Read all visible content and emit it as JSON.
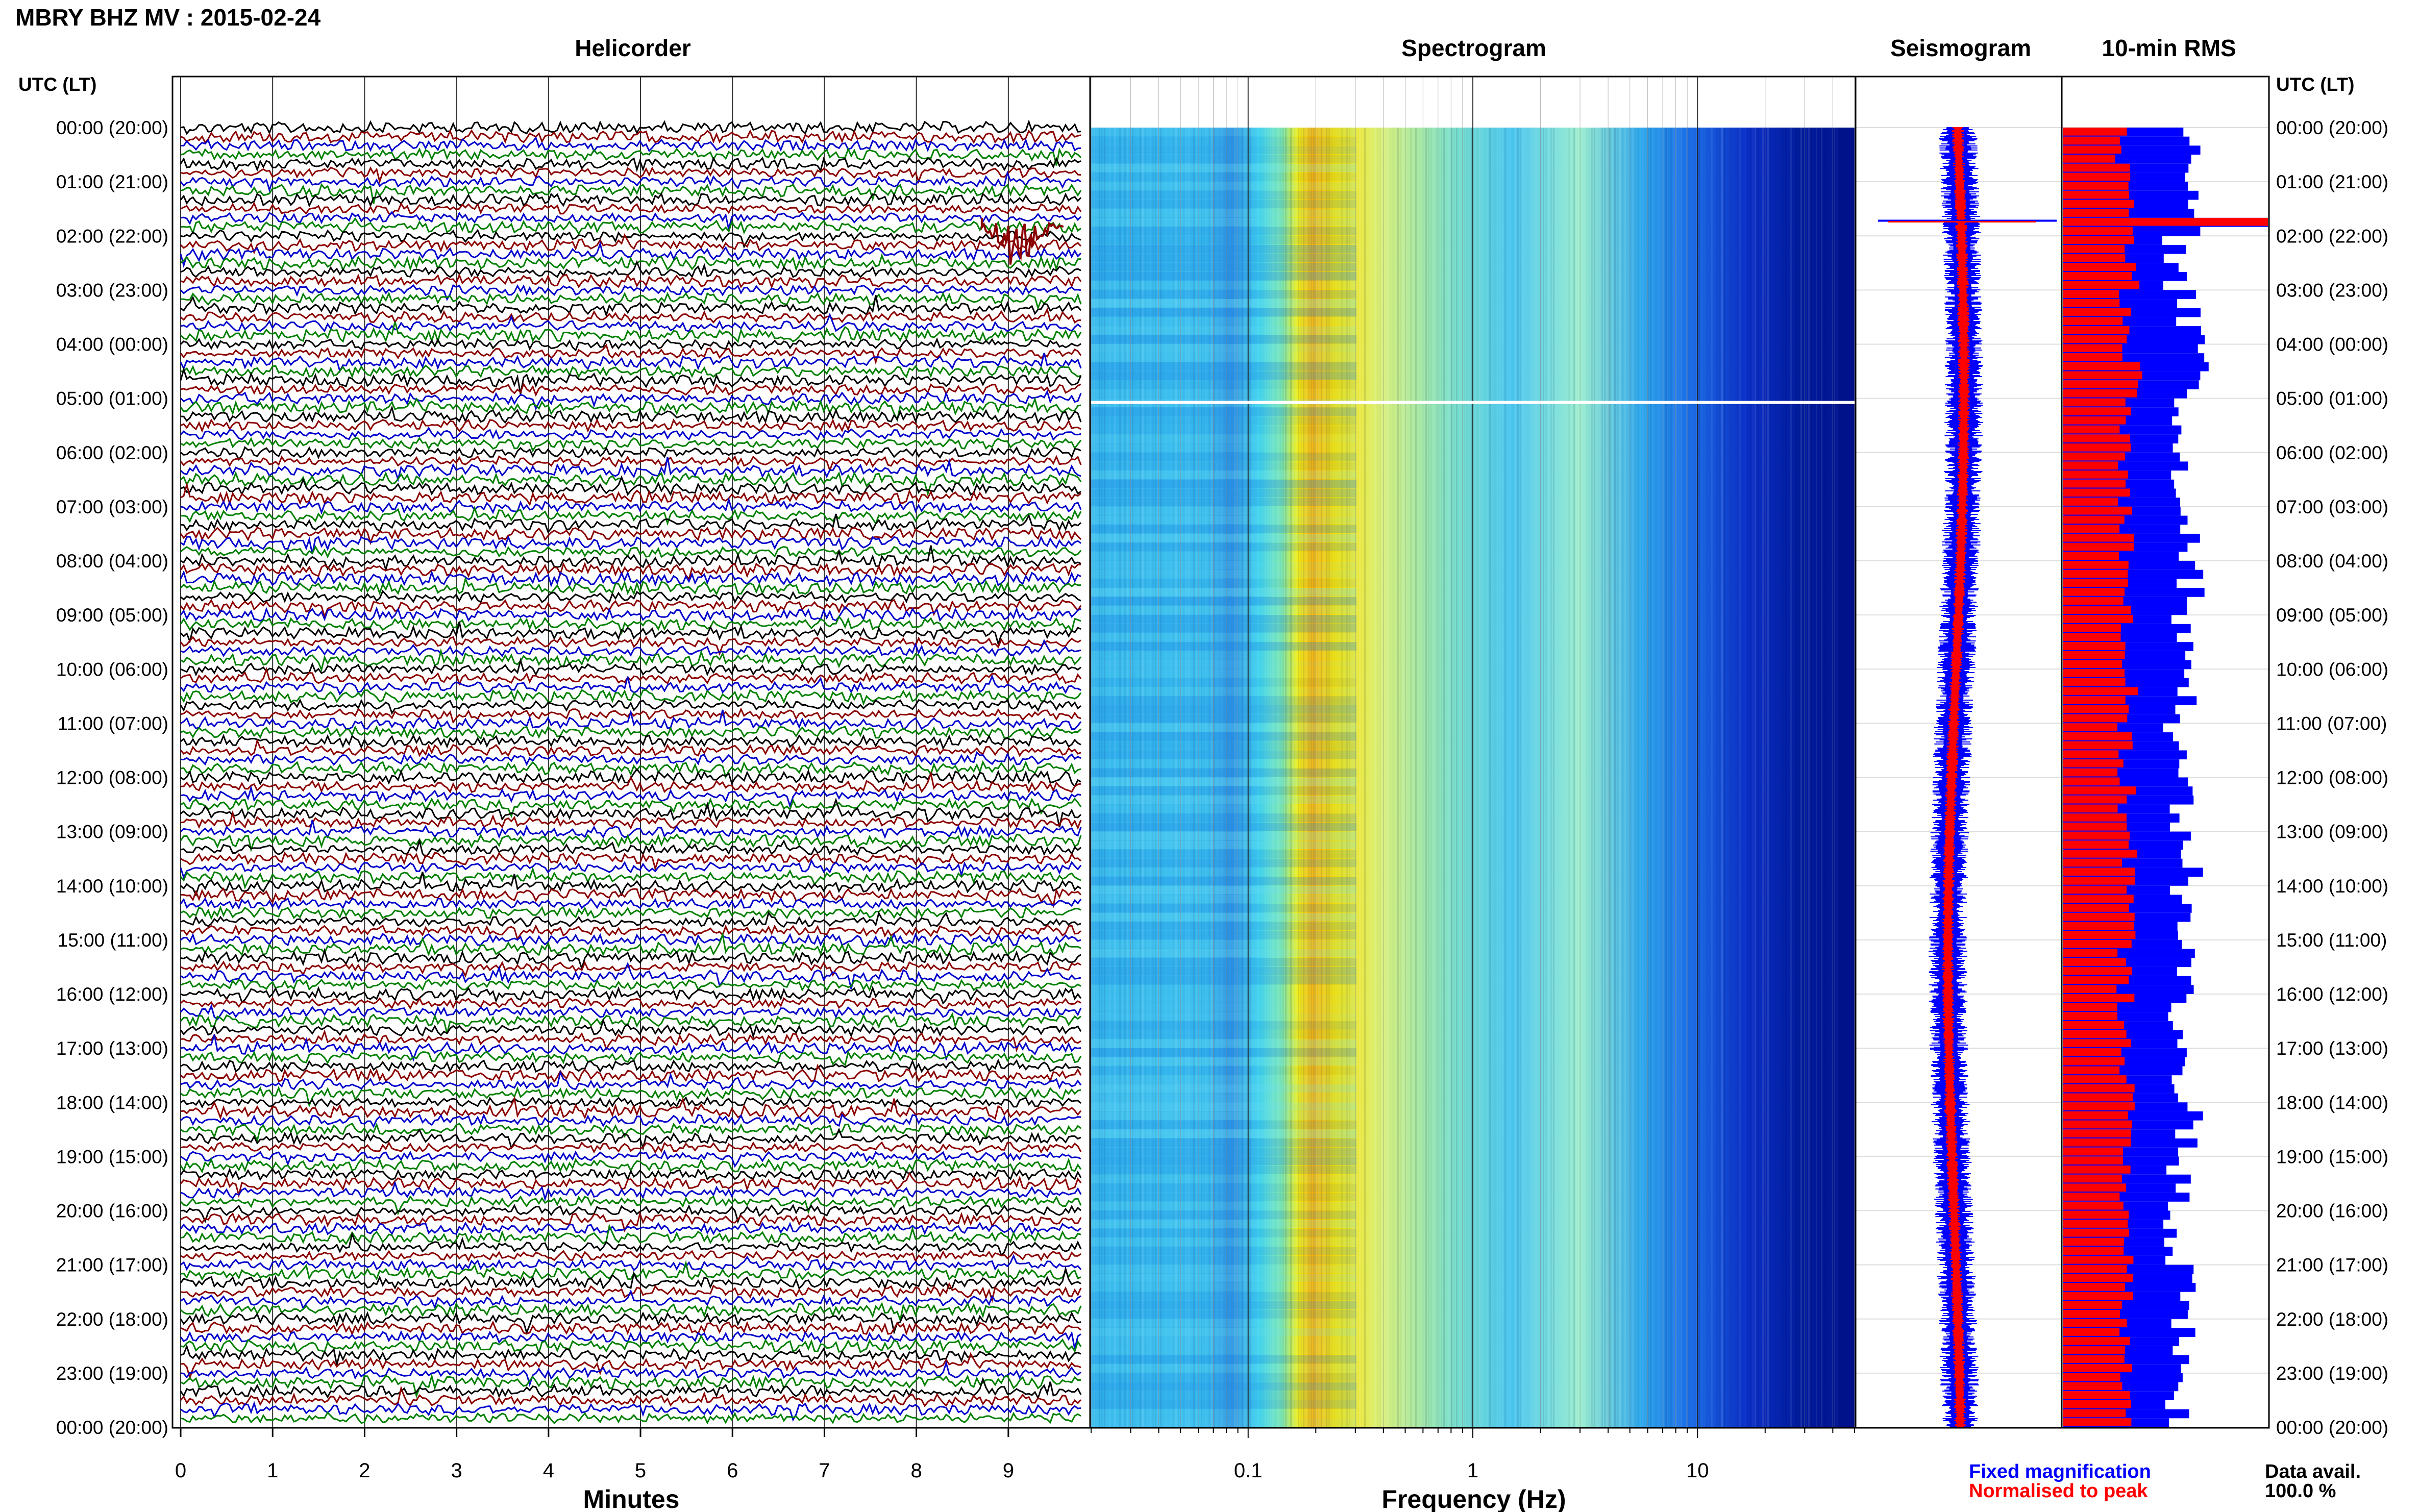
{
  "header": {
    "title": "MBRY BHZ MV : 2015-02-24",
    "utc_label_left": "UTC (LT)",
    "utc_label_right": "UTC (LT)"
  },
  "panels": {
    "helicorder": "Helicorder",
    "spectrogram": "Spectrogram",
    "seismogram": "Seismogram",
    "rms": "10-min RMS"
  },
  "footer": {
    "fixed_magnification": "Fixed magnification",
    "normalised_to_peak": "Normalised to peak",
    "data_avail_label": "Data avail.",
    "data_avail_value": "100.0 %"
  },
  "colors": {
    "helicorder_traces": [
      "#000000",
      "#8b0000",
      "#0000cc",
      "#008000"
    ],
    "fixed_magnification": "#0000ff",
    "normalised_to_peak": "#ff0000",
    "spectrogram_colormap": [
      "#00008b",
      "#0000ff",
      "#00bfff",
      "#7fffd4",
      "#ffff00",
      "#ff8c00"
    ]
  },
  "chart_data": [
    {
      "type": "line",
      "name": "helicorder",
      "title": "Helicorder",
      "xlabel": "Minutes",
      "x_ticks": [
        "0",
        "1",
        "2",
        "3",
        "4",
        "5",
        "6",
        "7",
        "8",
        "9"
      ],
      "xlim": [
        0,
        10
      ],
      "y_ticks": [
        "00:00 (20:00)",
        "01:00 (21:00)",
        "02:00 (22:00)",
        "03:00 (23:00)",
        "04:00 (00:00)",
        "05:00 (01:00)",
        "06:00 (02:00)",
        "07:00 (03:00)",
        "08:00 (04:00)",
        "09:00 (05:00)",
        "10:00 (06:00)",
        "11:00 (07:00)",
        "12:00 (08:00)",
        "13:00 (09:00)",
        "14:00 (10:00)",
        "15:00 (11:00)",
        "16:00 (12:00)",
        "17:00 (13:00)",
        "18:00 (14:00)",
        "19:00 (15:00)",
        "20:00 (16:00)",
        "21:00 (17:00)",
        "22:00 (18:00)",
        "23:00 (19:00)",
        "00:00 (20:00)"
      ],
      "lines_per_hour": 6,
      "events": [
        {
          "minute": 9.1,
          "time": "01:40",
          "description": "transient spike"
        }
      ]
    },
    {
      "type": "heatmap",
      "name": "spectrogram",
      "title": "Spectrogram",
      "xlabel": "Frequency (Hz)",
      "x_scale": "log",
      "xlim": [
        0.02,
        50
      ],
      "x_ticks": [
        "0.1",
        "1",
        "10"
      ],
      "dominant_band_hz": [
        0.17,
        0.3
      ],
      "high_frequency_rolloff_hz": 12
    },
    {
      "type": "line",
      "name": "seismogram",
      "title": "Seismogram",
      "series": [
        {
          "name": "Fixed magnification"
        },
        {
          "name": "Normalised to peak"
        }
      ]
    },
    {
      "type": "bar",
      "name": "rms",
      "title": "10-min RMS",
      "bins_per_hour": 6,
      "series": [
        {
          "name": "Fixed magnification",
          "values": [
            0.6,
            0.6,
            0.55,
            0.62,
            0.66,
            0.56,
            0.58,
            0.64,
            0.63,
            0.6,
            0.59,
            0.55,
            0.57,
            0.62,
            0.58,
            0.6,
            0.55,
            0.58,
            0.62,
            0.57,
            0.53,
            0.59,
            0.58,
            0.55
          ]
        },
        {
          "name": "Normalised to peak",
          "values": [
            0.3,
            0.31,
            0.33,
            0.32,
            0.34,
            0.31,
            0.3,
            0.32,
            0.33,
            0.31,
            0.32,
            0.3,
            0.31,
            0.33,
            0.32,
            0.3,
            0.31,
            0.32,
            0.31,
            0.32,
            0.31,
            0.3,
            0.31,
            0.31
          ]
        }
      ],
      "peak_bin": {
        "time": "01:40",
        "value": 1.0
      }
    }
  ]
}
